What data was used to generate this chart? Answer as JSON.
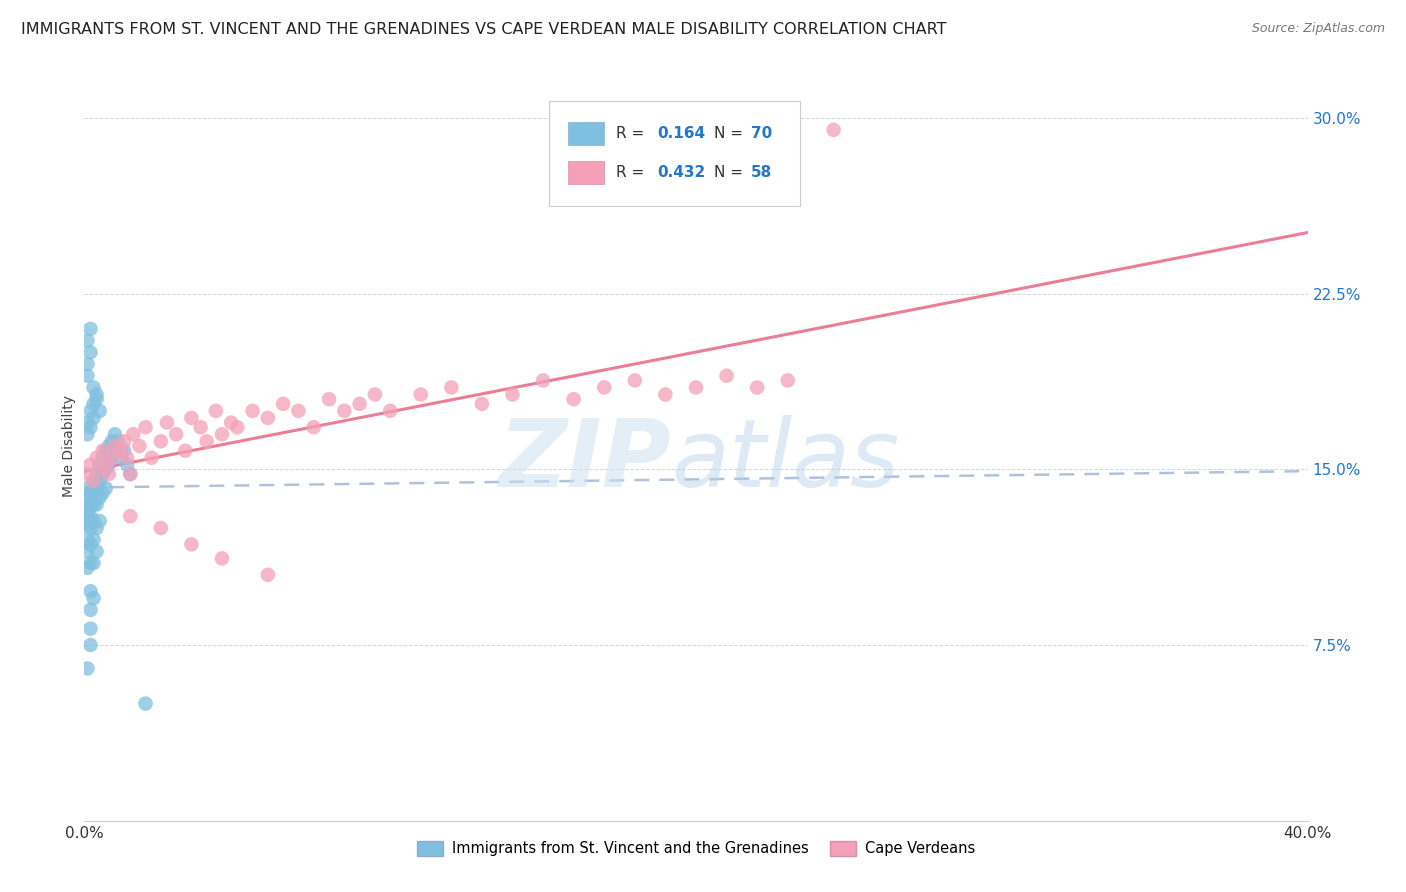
{
  "title": "IMMIGRANTS FROM ST. VINCENT AND THE GRENADINES VS CAPE VERDEAN MALE DISABILITY CORRELATION CHART",
  "source": "Source: ZipAtlas.com",
  "ylabel": "Male Disability",
  "yticks": [
    "7.5%",
    "15.0%",
    "22.5%",
    "30.0%"
  ],
  "ytick_vals": [
    0.075,
    0.15,
    0.225,
    0.3
  ],
  "xlim": [
    0.0,
    0.4
  ],
  "ylim": [
    0.0,
    0.32
  ],
  "color_blue": "#7fbfdf",
  "color_pink": "#f4a0b8",
  "color_pink_line": "#e8708a",
  "color_blue_line": "#a0b8d8",
  "color_r_n": "#2277cc",
  "legend_label1": "Immigrants from St. Vincent and the Grenadines",
  "legend_label2": "Cape Verdeans",
  "sv_x": [
    0.001,
    0.001,
    0.001,
    0.001,
    0.001,
    0.001,
    0.001,
    0.001,
    0.001,
    0.001,
    0.002,
    0.002,
    0.002,
    0.002,
    0.002,
    0.002,
    0.002,
    0.002,
    0.002,
    0.002,
    0.003,
    0.003,
    0.003,
    0.003,
    0.003,
    0.003,
    0.003,
    0.004,
    0.004,
    0.004,
    0.004,
    0.004,
    0.005,
    0.005,
    0.005,
    0.005,
    0.006,
    0.006,
    0.006,
    0.007,
    0.007,
    0.007,
    0.008,
    0.008,
    0.009,
    0.009,
    0.01,
    0.01,
    0.011,
    0.012,
    0.013,
    0.014,
    0.015,
    0.001,
    0.001,
    0.002,
    0.002,
    0.003,
    0.003,
    0.004,
    0.001,
    0.001,
    0.002,
    0.002,
    0.003,
    0.004,
    0.005,
    0.001,
    0.02,
    0.001
  ],
  "sv_y": [
    0.135,
    0.13,
    0.128,
    0.142,
    0.138,
    0.132,
    0.126,
    0.12,
    0.115,
    0.108,
    0.14,
    0.135,
    0.13,
    0.125,
    0.118,
    0.11,
    0.098,
    0.09,
    0.082,
    0.075,
    0.145,
    0.14,
    0.135,
    0.128,
    0.12,
    0.11,
    0.095,
    0.148,
    0.142,
    0.135,
    0.125,
    0.115,
    0.152,
    0.145,
    0.138,
    0.128,
    0.155,
    0.148,
    0.14,
    0.158,
    0.15,
    0.142,
    0.16,
    0.152,
    0.162,
    0.155,
    0.165,
    0.158,
    0.162,
    0.155,
    0.158,
    0.152,
    0.148,
    0.17,
    0.165,
    0.175,
    0.168,
    0.178,
    0.172,
    0.18,
    0.19,
    0.195,
    0.2,
    0.21,
    0.185,
    0.182,
    0.175,
    0.205,
    0.05,
    0.065
  ],
  "cv_x": [
    0.001,
    0.002,
    0.003,
    0.004,
    0.005,
    0.006,
    0.007,
    0.008,
    0.009,
    0.01,
    0.012,
    0.013,
    0.014,
    0.015,
    0.016,
    0.018,
    0.02,
    0.022,
    0.025,
    0.027,
    0.03,
    0.033,
    0.035,
    0.038,
    0.04,
    0.043,
    0.045,
    0.048,
    0.05,
    0.055,
    0.06,
    0.065,
    0.07,
    0.075,
    0.08,
    0.085,
    0.09,
    0.095,
    0.1,
    0.11,
    0.12,
    0.13,
    0.14,
    0.15,
    0.16,
    0.17,
    0.18,
    0.19,
    0.2,
    0.21,
    0.22,
    0.23,
    0.015,
    0.025,
    0.035,
    0.045,
    0.06,
    0.245
  ],
  "cv_y": [
    0.148,
    0.152,
    0.145,
    0.155,
    0.15,
    0.158,
    0.152,
    0.148,
    0.155,
    0.16,
    0.158,
    0.162,
    0.155,
    0.148,
    0.165,
    0.16,
    0.168,
    0.155,
    0.162,
    0.17,
    0.165,
    0.158,
    0.172,
    0.168,
    0.162,
    0.175,
    0.165,
    0.17,
    0.168,
    0.175,
    0.172,
    0.178,
    0.175,
    0.168,
    0.18,
    0.175,
    0.178,
    0.182,
    0.175,
    0.182,
    0.185,
    0.178,
    0.182,
    0.188,
    0.18,
    0.185,
    0.188,
    0.182,
    0.185,
    0.19,
    0.185,
    0.188,
    0.13,
    0.125,
    0.118,
    0.112,
    0.105,
    0.295
  ]
}
